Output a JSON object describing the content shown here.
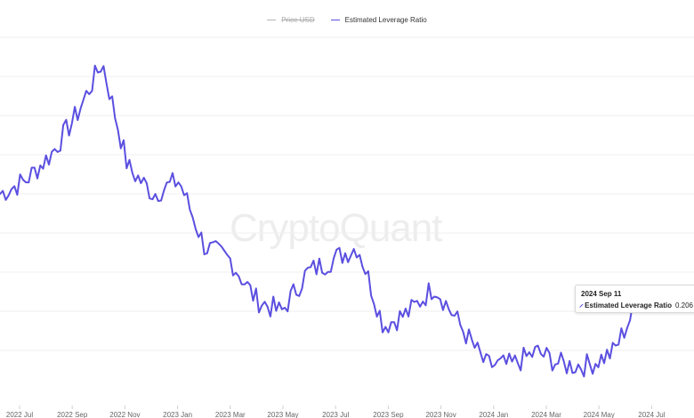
{
  "legend": {
    "items": [
      {
        "label": "Price USD",
        "color": "#b5b5b5",
        "active": false
      },
      {
        "label": "Estimated Leverage Ratio",
        "color": "#5b4fe0",
        "active": true
      }
    ]
  },
  "watermark": "CryptoQuant",
  "tooltip": {
    "date": "2024 Sep 11",
    "series": "Estimated Leverage Ratio",
    "value": "0.206",
    "color": "#5b4fe0"
  },
  "chart_data": {
    "type": "line",
    "title": "",
    "xlabel": "",
    "ylabel": "",
    "x_ticks": [
      "2022 Jul",
      "2022 Sep",
      "2022 Nov",
      "2023 Jan",
      "2023 Mar",
      "2023 May",
      "2023 Jul",
      "2023 Sep",
      "2023 Nov",
      "2024 Jan",
      "2024 Mar",
      "2024 May",
      "2024 Jul"
    ],
    "grid": true,
    "series": [
      {
        "name": "Estimated Leverage Ratio",
        "color": "#5b4fe0",
        "x": [
          "2022 Jun",
          "2022 Jul",
          "2022 Aug",
          "2022 Sep",
          "2022 Oct",
          "2022 Nov",
          "2022 Dec",
          "2023 Jan",
          "2023 Feb",
          "2023 Mar",
          "2023 Apr",
          "2023 May",
          "2023 Jun",
          "2023 Jul",
          "2023 Aug",
          "2023 Sep",
          "2023 Oct",
          "2023 Nov",
          "2023 Dec",
          "2024 Jan",
          "2024 Feb",
          "2024 Mar",
          "2024 Apr",
          "2024 May",
          "2024 Jun",
          "2024 Jul",
          "2024 Aug",
          "2024 Sep"
        ],
        "y": [
          0.28,
          0.29,
          0.31,
          0.34,
          0.38,
          0.3,
          0.28,
          0.29,
          0.24,
          0.23,
          0.2,
          0.19,
          0.22,
          0.23,
          0.24,
          0.18,
          0.19,
          0.21,
          0.18,
          0.15,
          0.15,
          0.16,
          0.15,
          0.15,
          0.16,
          0.2,
          0.2,
          0.206
        ]
      }
    ]
  }
}
